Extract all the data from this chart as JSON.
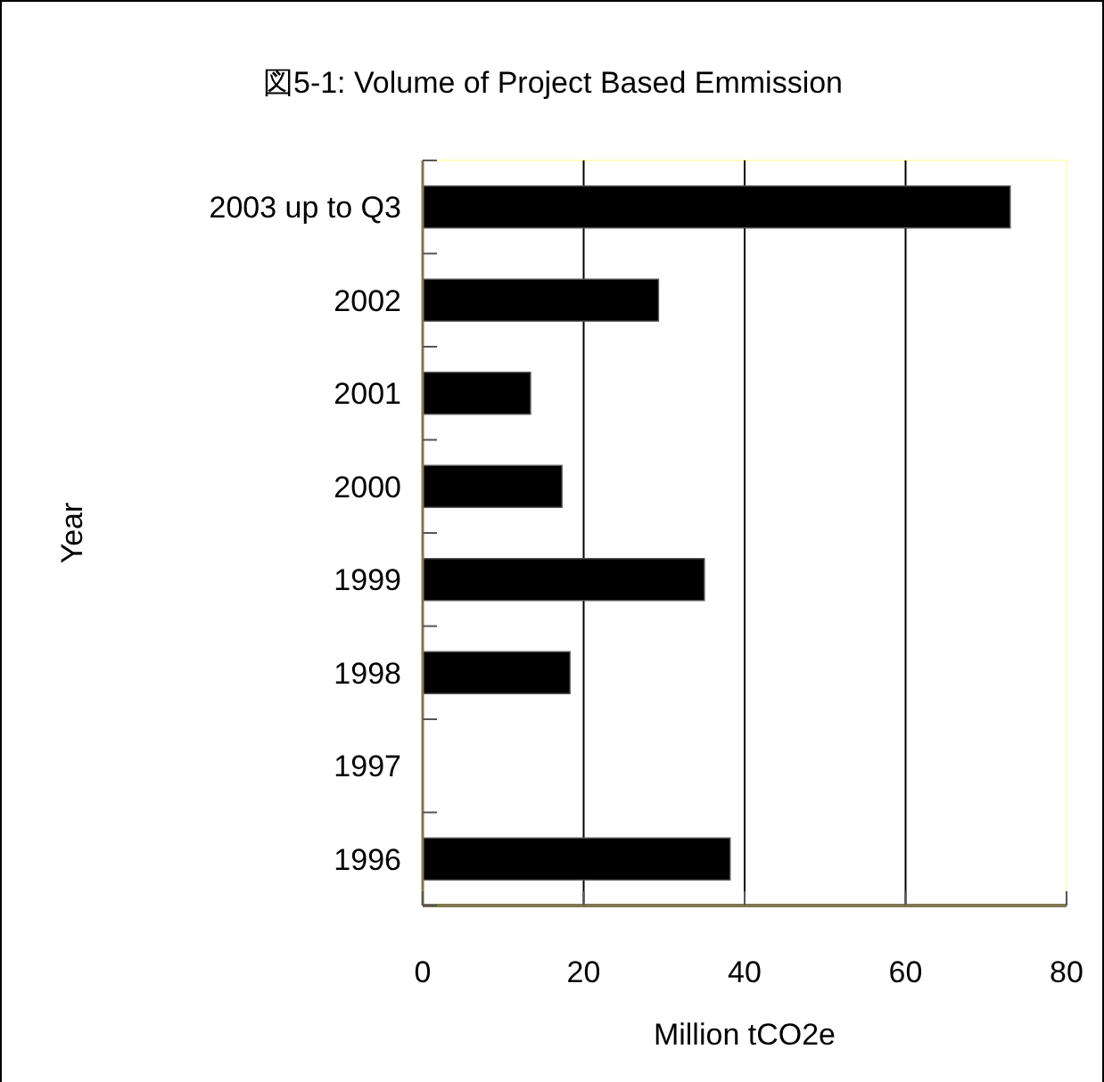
{
  "chart_data": {
    "type": "bar",
    "orientation": "horizontal",
    "title": "図5-1: Volume of Project Based Emmission",
    "xlabel": "Million tCO2e",
    "ylabel": "Year",
    "categories": [
      "2003 up to Q3",
      "2002",
      "2001",
      "2000",
      "1999",
      "1998",
      "1997",
      "1996"
    ],
    "values": [
      73.0,
      29.3,
      13.4,
      17.3,
      35.0,
      18.3,
      0,
      38.2
    ],
    "color": "#000000",
    "xlim": [
      0,
      80
    ],
    "xticks": [
      0,
      20,
      40,
      60,
      80
    ],
    "grid": "x"
  }
}
